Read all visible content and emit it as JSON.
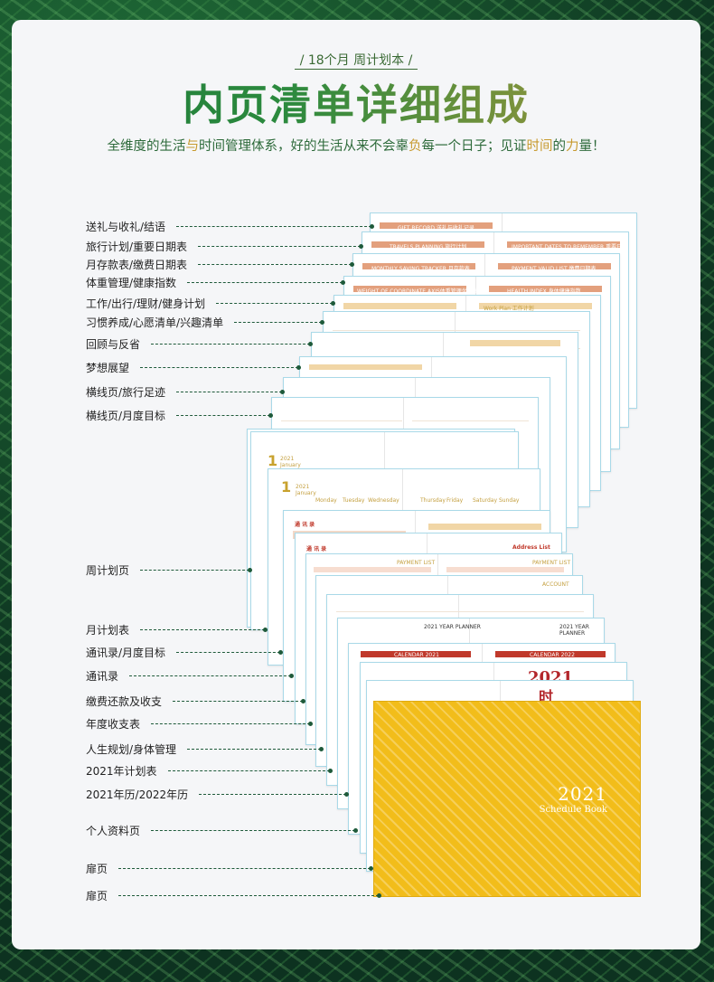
{
  "header": {
    "subtitle": "/ 18个月  周计划本 /",
    "title": "内页清单详细组成",
    "tagline_parts": [
      "全维度的生活",
      "与",
      "时间管理体系，好的生活从来不会辜",
      "负",
      "每一个日子；见证",
      "时间",
      "的",
      "力",
      "量！"
    ]
  },
  "labels": [
    "送礼与收礼/结语",
    "旅行计划/重要日期表",
    "月存款表/缴费日期表",
    "体重管理/健康指数",
    "工作/出行/理财/健身计划",
    "习惯养成/心愿清单/兴趣清单",
    "回顾与反省",
    "梦想展望",
    "横线页/旅行足迹",
    "横线页/月度目标",
    "周计划页",
    "月计划表",
    "通讯录/月度目标",
    "通讯录",
    "缴费还款及收支",
    "年度收支表",
    "人生规划/身体管理",
    "2021年计划表",
    "2021年历/2022年历",
    "个人资料页",
    "扉页",
    "扉页"
  ],
  "pages": {
    "gift_record": "GIFT RECORD 送礼与收礼记录",
    "travels": "TRAVELS PLANNING 旅行计划",
    "important_dates": "IMPORTANT DATES TO REMEMBER 重要日期表",
    "saving": "MONTHLY SAVING TRACKER 月存款表",
    "payment": "PAYMENT VALID LIST 缴费日期表",
    "weight": "WEIGHT OF COORDINATE AXIS体重管理坐标轴",
    "health": "HEALTH INDEX 身体健康指数",
    "work_plan": "Work Plan  工作计划",
    "week_num": "1",
    "week_year": "2021",
    "week_month": "January",
    "days": [
      "Monday",
      "Tuesday",
      "Wednesday",
      "Thursday",
      "Friday",
      "Saturday",
      "Sunday"
    ],
    "address": "通 讯 录",
    "address_list": "Address List",
    "payment_list": "PAYMENT LIST",
    "account": "ACCOUNT",
    "calendar_2021": "CALENDAR 2021",
    "calendar_2022": "CALENDAR 2022",
    "plan_2021": "2021 YEAR PLANNER",
    "red_year": "2021",
    "red_char": "时"
  },
  "cover": {
    "year": "2021",
    "subtitle": "Schedule Book",
    "color": "#f2bd1a"
  }
}
